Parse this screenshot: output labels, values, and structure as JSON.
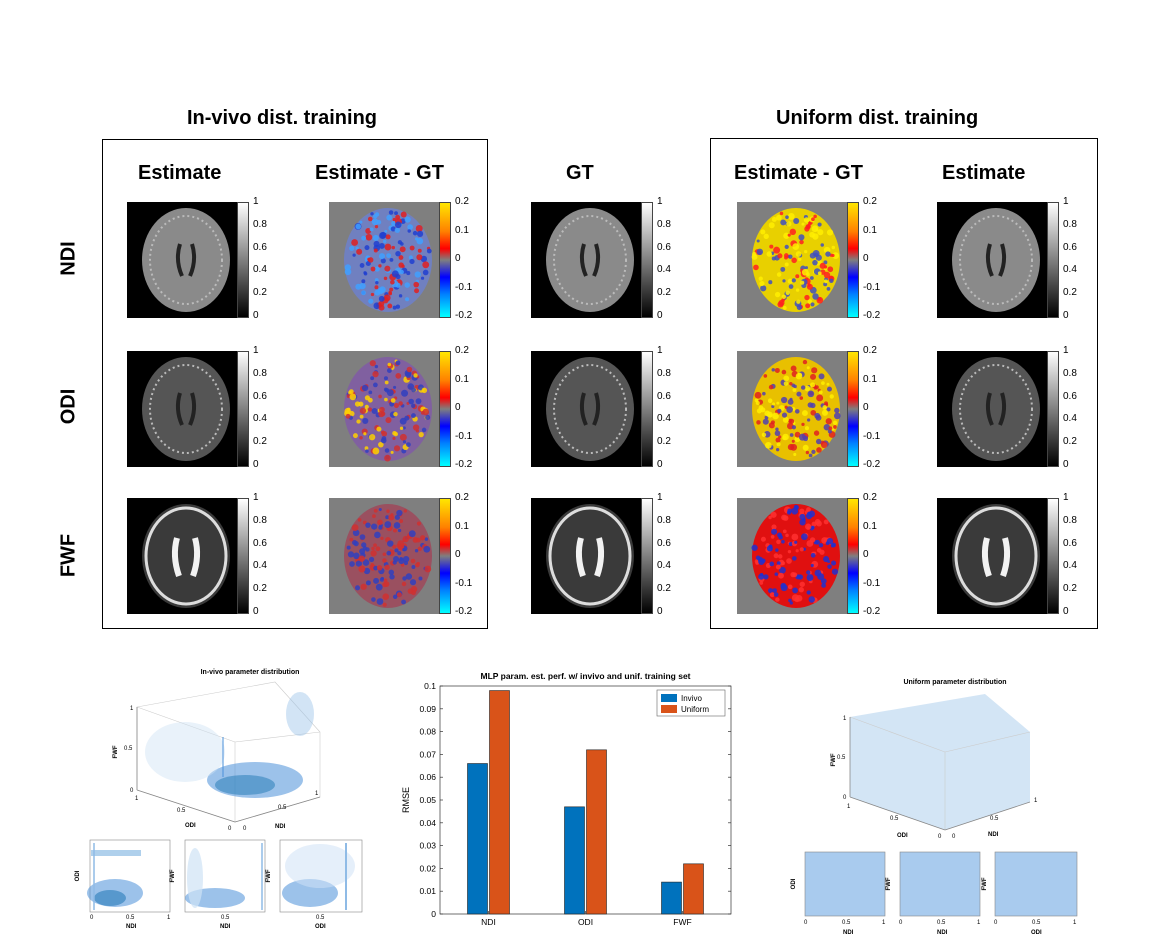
{
  "titles": {
    "invivo": "In-vivo dist. training",
    "uniform": "Uniform dist. training"
  },
  "columns": {
    "estimate_left": "Estimate",
    "diff_left": "Estimate - GT",
    "gt": "GT",
    "diff_right": "Estimate - GT",
    "estimate_right": "Estimate"
  },
  "rows": [
    "NDI",
    "ODI",
    "FWF"
  ],
  "colorbars": {
    "gray_ticks": [
      "1",
      "0.8",
      "0.6",
      "0.4",
      "0.2",
      "0"
    ],
    "diff_ticks": [
      "0.2",
      "0.1",
      "0",
      "-0.1",
      "-0.2"
    ]
  },
  "invivo_dist": {
    "title": "In-vivo parameter distribution",
    "z_label": "FWF",
    "x_label": "ODI",
    "y_label": "NDI",
    "z_ticks": [
      "1",
      "0.5",
      "0"
    ],
    "x_ticks": [
      "1",
      "0.5",
      "0"
    ],
    "y_ticks": [
      "0",
      "0.5",
      "1"
    ],
    "mini": [
      {
        "ylabel": "ODI",
        "xlabel": "NDI"
      },
      {
        "ylabel": "FWF",
        "xlabel": "NDI"
      },
      {
        "ylabel": "FWF",
        "xlabel": "ODI"
      }
    ],
    "mini_ticks": [
      "0",
      "0.5",
      "1"
    ]
  },
  "uniform_dist": {
    "title": "Uniform parameter distribution",
    "z_label": "FWF",
    "x_label": "ODI",
    "y_label": "NDI",
    "z_ticks": [
      "1",
      "0.5",
      "0"
    ],
    "x_ticks": [
      "1",
      "0.5",
      "0"
    ],
    "y_ticks": [
      "0",
      "0.5",
      "1"
    ],
    "mini": [
      {
        "ylabel": "ODI",
        "xlabel": "NDI"
      },
      {
        "ylabel": "FWF",
        "xlabel": "NDI"
      },
      {
        "ylabel": "FWF",
        "xlabel": "ODI"
      }
    ],
    "mini_ticks": [
      "0",
      "0.5",
      "1"
    ]
  },
  "chart_data": {
    "type": "bar",
    "title": "MLP param. est. perf. w/ invivo and unif. training set",
    "ylabel": "RMSE",
    "xlabel": "",
    "categories": [
      "NDI",
      "ODI",
      "FWF"
    ],
    "series": [
      {
        "name": "Invivo",
        "values": [
          0.066,
          0.047,
          0.014
        ],
        "color": "#0072BD"
      },
      {
        "name": "Uniform",
        "values": [
          0.098,
          0.072,
          0.022
        ],
        "color": "#D95319"
      }
    ],
    "ylim": [
      0,
      0.1
    ],
    "yticks": [
      "0",
      "0.01",
      "0.02",
      "0.03",
      "0.04",
      "0.05",
      "0.06",
      "0.07",
      "0.08",
      "0.09",
      "0.1"
    ],
    "legend": "top-right",
    "grid": false
  }
}
